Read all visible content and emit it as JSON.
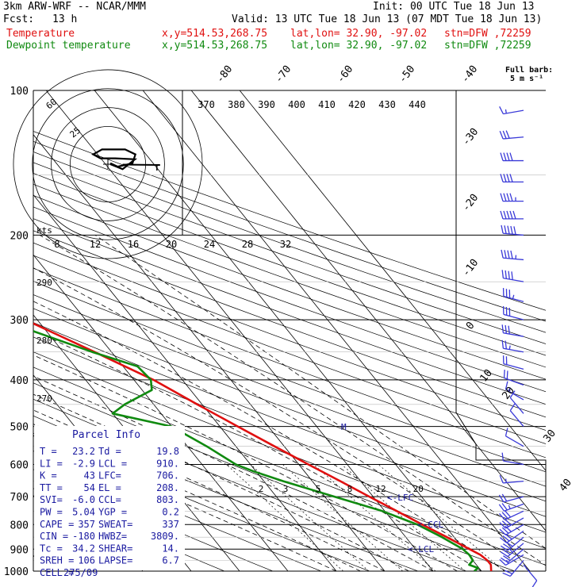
{
  "header": {
    "model": "3km ARW-WRF -- NCAR/MMM",
    "fcst_label": "Fcst:",
    "fcst_value": "13 h",
    "init": "Init: 00 UTC Tue 18 Jun 13",
    "valid": "Valid: 13 UTC Tue 18 Jun 13 (07 MDT Tue 18 Jun 13)",
    "temp_name": "Temperature",
    "dew_name": "Dewpoint temperature",
    "xy": "x,y=514.53,268.75",
    "latlon": "lat,lon= 32.90, -97.02",
    "stn": "stn=DFW ,72259",
    "barb_note_1": "Full barb:",
    "barb_note_2": "5 m s⁻¹"
  },
  "colors": {
    "temperature": "#e01010",
    "dewpoint": "#108a10",
    "barbs": "#3a3ad8",
    "parcel_box": "#1a1aa0",
    "grid": "#000000"
  },
  "parcel": {
    "title": "Parcel Info",
    "rows": [
      [
        "T  =",
        "23.2",
        "Td =",
        "19.8"
      ],
      [
        "LI =",
        "-2.9",
        "LCL =",
        "910."
      ],
      [
        "K  =",
        "43",
        "LFC=",
        "706."
      ],
      [
        "TT =",
        "54",
        "EL  =",
        "208."
      ],
      [
        "SVI=",
        "-6.0",
        "CCL=",
        "803."
      ],
      [
        "PW =",
        "5.04",
        "YGP =",
        "0.2"
      ],
      [
        "CAPE =",
        "357",
        "SWEAT=",
        "337"
      ],
      [
        "CIN =",
        "-180",
        "HWBZ=",
        "3809."
      ],
      [
        "Tc  =",
        "34.2",
        "SHEAR=",
        "14."
      ],
      [
        "SREH =",
        "106",
        "LAPSE=",
        "6.7"
      ],
      [
        "CELL =",
        "275/09",
        "",
        ""
      ]
    ]
  },
  "axis": {
    "pressure_levels": [
      100,
      200,
      300,
      400,
      500,
      600,
      700,
      800,
      900,
      1000
    ],
    "skew_temp_labels": [
      "-80",
      "-70",
      "-60",
      "-50",
      "-40",
      "-30",
      "-20",
      "-10",
      "0",
      "10",
      "20",
      "30",
      "40"
    ],
    "theta_labels": [
      "370",
      "380",
      "390",
      "400",
      "410",
      "420",
      "430",
      "440"
    ],
    "low_theta_labels": [
      "290",
      "280",
      "270"
    ],
    "kts_label": "kts",
    "kts_rings": [
      "8",
      "12",
      "16",
      "20",
      "24",
      "28",
      "32"
    ],
    "mixing_ratio_labels": [
      "2",
      "3",
      "5",
      "8",
      "12",
      "20"
    ],
    "lfc_label": "<-LFC",
    "ccl_label": "<-CCL",
    "lcl_label": "<-LCL",
    "el_marker": "M"
  },
  "chart_data": {
    "type": "line",
    "x_unit": "deg C",
    "y_unit": "hPa",
    "y_scale": "log, inverted",
    "ylim": [
      1000,
      100
    ],
    "series": [
      {
        "name": "Temperature",
        "points": [
          [
            1000,
            22.0
          ],
          [
            970,
            23.0
          ],
          [
            950,
            23.0
          ],
          [
            925,
            22.5
          ],
          [
            900,
            21.2
          ],
          [
            850,
            18.5
          ],
          [
            800,
            15.5
          ],
          [
            750,
            12.5
          ],
          [
            700,
            9.2
          ],
          [
            650,
            5.8
          ],
          [
            600,
            2.0
          ],
          [
            550,
            -2.0
          ],
          [
            500,
            -6.3
          ],
          [
            450,
            -11.0
          ],
          [
            400,
            -16.0
          ],
          [
            350,
            -23.5
          ],
          [
            300,
            -32.5
          ],
          [
            250,
            -42.0
          ],
          [
            200,
            -52.5
          ],
          [
            175,
            -57.5
          ],
          [
            150,
            -61.0
          ],
          [
            125,
            -62.5
          ],
          [
            110,
            -62.0
          ],
          [
            100,
            -61.0
          ]
        ]
      },
      {
        "name": "Dewpoint temperature",
        "points": [
          [
            1000,
            18.5
          ],
          [
            985,
            19.8
          ],
          [
            970,
            18.5
          ],
          [
            950,
            20.0
          ],
          [
            925,
            20.2
          ],
          [
            900,
            19.8
          ],
          [
            850,
            17.5
          ],
          [
            800,
            14.5
          ],
          [
            750,
            9.5
          ],
          [
            700,
            2.0
          ],
          [
            650,
            -6.0
          ],
          [
            620,
            -10.5
          ],
          [
            600,
            -13.0
          ],
          [
            550,
            -16.0
          ],
          [
            500,
            -20.0
          ],
          [
            470,
            -30.0
          ],
          [
            450,
            -26.0
          ],
          [
            420,
            -18.0
          ],
          [
            400,
            -16.5
          ],
          [
            375,
            -17.0
          ],
          [
            350,
            -24.0
          ],
          [
            300,
            -37.5
          ],
          [
            250,
            -51.0
          ],
          [
            200,
            -67.0
          ],
          [
            180,
            -73.0
          ],
          [
            150,
            -80.0
          ],
          [
            125,
            -86.0
          ],
          [
            110,
            -86.0
          ],
          [
            100,
            -84.0
          ]
        ]
      }
    ],
    "mixing_ratio_g_per_kg": [
      2,
      3,
      5,
      8,
      12,
      20
    ],
    "hodograph_kts": [
      [
        0.5,
        0.2
      ],
      [
        2.0,
        -0.5
      ],
      [
        5.0,
        0.2
      ],
      [
        5.6,
        2.0
      ],
      [
        3.5,
        3.0
      ],
      [
        -1.2,
        3.0
      ],
      [
        -3.0,
        2.0
      ],
      [
        -1.5,
        1.2
      ],
      [
        1.5,
        1.2
      ],
      [
        5.5,
        1.0
      ],
      [
        3.0,
        -1.0
      ],
      [
        0.5,
        0.0
      ]
    ],
    "storm_motion_kts": [
      9.0,
      0.0
    ],
    "wind_barbs": [
      {
        "p": 970,
        "dir": 140,
        "spd_ms": 7
      },
      {
        "p": 950,
        "dir": 220,
        "spd_ms": 10
      },
      {
        "p": 925,
        "dir": 240,
        "spd_ms": 8
      },
      {
        "p": 900,
        "dir": 230,
        "spd_ms": 11
      },
      {
        "p": 875,
        "dir": 230,
        "spd_ms": 14
      },
      {
        "p": 850,
        "dir": 230,
        "spd_ms": 16
      },
      {
        "p": 825,
        "dir": 235,
        "spd_ms": 17
      },
      {
        "p": 800,
        "dir": 240,
        "spd_ms": 17
      },
      {
        "p": 775,
        "dir": 240,
        "spd_ms": 16
      },
      {
        "p": 750,
        "dir": 245,
        "spd_ms": 16
      },
      {
        "p": 725,
        "dir": 250,
        "spd_ms": 14
      },
      {
        "p": 700,
        "dir": 255,
        "spd_ms": 10
      },
      {
        "p": 650,
        "dir": 265,
        "spd_ms": 8
      },
      {
        "p": 600,
        "dir": 280,
        "spd_ms": 6
      },
      {
        "p": 550,
        "dir": 300,
        "spd_ms": 5
      },
      {
        "p": 500,
        "dir": 320,
        "spd_ms": 5
      },
      {
        "p": 470,
        "dir": 320,
        "spd_ms": 6
      },
      {
        "p": 440,
        "dir": 300,
        "spd_ms": 8
      },
      {
        "p": 410,
        "dir": 290,
        "spd_ms": 10
      },
      {
        "p": 380,
        "dir": 285,
        "spd_ms": 11
      },
      {
        "p": 350,
        "dir": 280,
        "spd_ms": 13
      },
      {
        "p": 325,
        "dir": 280,
        "spd_ms": 15
      },
      {
        "p": 300,
        "dir": 285,
        "spd_ms": 16
      },
      {
        "p": 275,
        "dir": 285,
        "spd_ms": 18
      },
      {
        "p": 250,
        "dir": 280,
        "spd_ms": 20
      },
      {
        "p": 225,
        "dir": 275,
        "spd_ms": 23
      },
      {
        "p": 200,
        "dir": 275,
        "spd_ms": 25
      },
      {
        "p": 185,
        "dir": 270,
        "spd_ms": 25
      },
      {
        "p": 170,
        "dir": 270,
        "spd_ms": 24
      },
      {
        "p": 155,
        "dir": 270,
        "spd_ms": 22
      },
      {
        "p": 140,
        "dir": 270,
        "spd_ms": 22
      },
      {
        "p": 125,
        "dir": 265,
        "spd_ms": 15
      },
      {
        "p": 110,
        "dir": 260,
        "spd_ms": 8
      }
    ]
  }
}
